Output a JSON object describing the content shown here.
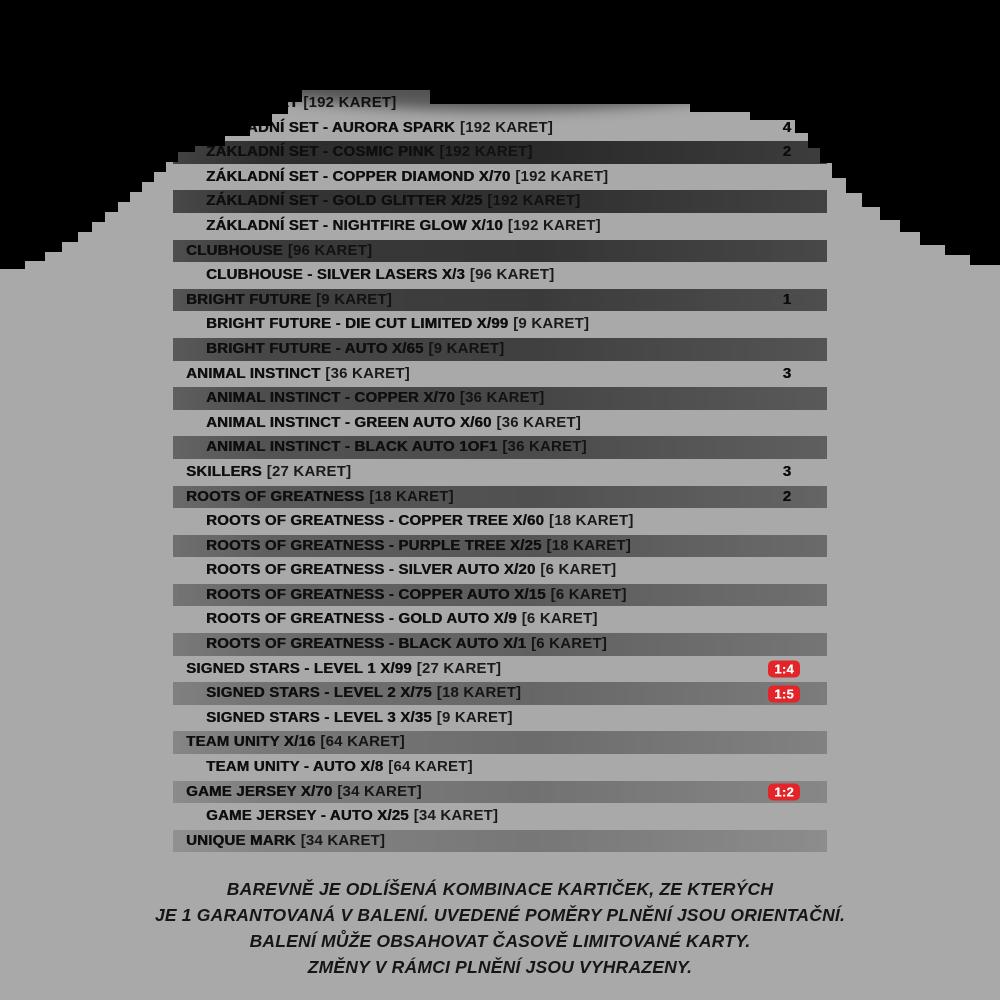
{
  "page": {
    "background_color": "#a9a9a9",
    "dome_color": "#000000",
    "text_color": "#0e0e0e"
  },
  "checklist": {
    "strip_top_color": "#282828",
    "strip_bottom_color": "#848484",
    "badge_color": "#e32428",
    "badge_text_color": "#ffffff",
    "rows": [
      {
        "label": "ZÁKLADNÍ SET",
        "count": "[192 KARET]",
        "indent": 0,
        "striped": false,
        "number": "",
        "badge": ""
      },
      {
        "label": "ZÁKLADNÍ SET - AURORA SPARK",
        "count": "[192 KARET]",
        "indent": 1,
        "striped": false,
        "number": "4",
        "badge": ""
      },
      {
        "label": "ZÁKLADNÍ SET - COSMIC PINK",
        "count": "[192 KARET]",
        "indent": 1,
        "striped": true,
        "number": "2",
        "badge": ""
      },
      {
        "label": "ZÁKLADNÍ SET - COPPER DIAMOND X/70",
        "count": "[192 KARET]",
        "indent": 1,
        "striped": false,
        "number": "",
        "badge": ""
      },
      {
        "label": "ZÁKLADNÍ SET - GOLD GLITTER X/25",
        "count": "[192 KARET]",
        "indent": 1,
        "striped": true,
        "number": "",
        "badge": ""
      },
      {
        "label": "ZÁKLADNÍ SET - NIGHTFIRE GLOW X/10",
        "count": "[192 KARET]",
        "indent": 1,
        "striped": false,
        "number": "",
        "badge": ""
      },
      {
        "label": "CLUBHOUSE",
        "count": "[96 KARET]",
        "indent": 0,
        "striped": true,
        "number": "",
        "badge": ""
      },
      {
        "label": "CLUBHOUSE - SILVER LASERS X/3",
        "count": "[96 KARET]",
        "indent": 1,
        "striped": false,
        "number": "",
        "badge": ""
      },
      {
        "label": "BRIGHT FUTURE",
        "count": "[9 KARET]",
        "indent": 0,
        "striped": true,
        "number": "1",
        "badge": ""
      },
      {
        "label": "BRIGHT FUTURE - DIE CUT LIMITED X/99",
        "count": "[9 KARET]",
        "indent": 1,
        "striped": false,
        "number": "",
        "badge": ""
      },
      {
        "label": "BRIGHT FUTURE - AUTO X/65",
        "count": "[9 KARET]",
        "indent": 1,
        "striped": true,
        "number": "",
        "badge": ""
      },
      {
        "label": "ANIMAL INSTINCT",
        "count": "[36 KARET]",
        "indent": 0,
        "striped": false,
        "number": "3",
        "badge": ""
      },
      {
        "label": "ANIMAL INSTINCT - COPPER X/70",
        "count": "[36 KARET]",
        "indent": 1,
        "striped": true,
        "number": "",
        "badge": ""
      },
      {
        "label": "ANIMAL INSTINCT - GREEN AUTO X/60",
        "count": "[36 KARET]",
        "indent": 1,
        "striped": false,
        "number": "",
        "badge": ""
      },
      {
        "label": "ANIMAL INSTINCT - BLACK AUTO 1OF1",
        "count": "[36 KARET]",
        "indent": 1,
        "striped": true,
        "number": "",
        "badge": ""
      },
      {
        "label": "SKILLERS",
        "count": "[27 KARET]",
        "indent": 0,
        "striped": false,
        "number": "3",
        "badge": ""
      },
      {
        "label": "ROOTS OF GREATNESS",
        "count": "[18 KARET]",
        "indent": 0,
        "striped": true,
        "number": "2",
        "badge": ""
      },
      {
        "label": "ROOTS OF GREATNESS - COPPER TREE X/60",
        "count": "[18 KARET]",
        "indent": 1,
        "striped": false,
        "number": "",
        "badge": ""
      },
      {
        "label": "ROOTS OF GREATNESS - PURPLE TREE X/25",
        "count": "[18 KARET]",
        "indent": 1,
        "striped": true,
        "number": "",
        "badge": ""
      },
      {
        "label": "ROOTS OF GREATNESS - SILVER AUTO X/20",
        "count": "[6 KARET]",
        "indent": 1,
        "striped": false,
        "number": "",
        "badge": ""
      },
      {
        "label": "ROOTS OF GREATNESS - COPPER AUTO X/15",
        "count": "[6 KARET]",
        "indent": 1,
        "striped": true,
        "number": "",
        "badge": ""
      },
      {
        "label": "ROOTS OF GREATNESS - GOLD AUTO X/9",
        "count": "[6 KARET]",
        "indent": 1,
        "striped": false,
        "number": "",
        "badge": ""
      },
      {
        "label": "ROOTS OF GREATNESS - BLACK AUTO X/1",
        "count": "[6 KARET]",
        "indent": 1,
        "striped": true,
        "number": "",
        "badge": ""
      },
      {
        "label": "SIGNED STARS - LEVEL 1 X/99",
        "count": "[27 KARET]",
        "indent": 0,
        "striped": false,
        "number": "",
        "badge": "1:4"
      },
      {
        "label": "SIGNED STARS - LEVEL 2 X/75",
        "count": "[18 KARET]",
        "indent": 1,
        "striped": true,
        "number": "",
        "badge": "1:5"
      },
      {
        "label": "SIGNED STARS - LEVEL 3 X/35",
        "count": "[9 KARET]",
        "indent": 1,
        "striped": false,
        "number": "",
        "badge": ""
      },
      {
        "label": "TEAM UNITY X/16",
        "count": "[64 KARET]",
        "indent": 0,
        "striped": true,
        "number": "",
        "badge": ""
      },
      {
        "label": "TEAM UNITY - AUTO X/8",
        "count": "[64 KARET]",
        "indent": 1,
        "striped": false,
        "number": "",
        "badge": ""
      },
      {
        "label": "GAME JERSEY X/70",
        "count": "[34 KARET]",
        "indent": 0,
        "striped": true,
        "number": "",
        "badge": "1:2"
      },
      {
        "label": "GAME JERSEY - AUTO X/25",
        "count": "[34 KARET]",
        "indent": 1,
        "striped": false,
        "number": "",
        "badge": ""
      },
      {
        "label": "UNIQUE MARK",
        "count": "[34 KARET]",
        "indent": 0,
        "striped": true,
        "number": "",
        "badge": ""
      }
    ]
  },
  "footer": {
    "line1": "BAREVNĚ JE ODLÍŠENÁ KOMBINACE KARTIČEK, ZE KTERÝCH",
    "line2": "JE 1 GARANTOVANÁ V BALENÍ. UVEDENÉ POMĚRY PLNĚNÍ JSOU ORIENTAČNÍ.",
    "line3": "BALENÍ MŮŽE OBSAHOVAT ČASOVĚ LIMITOVANÉ KARTY.",
    "line4": "ZMĚNY V RÁMCI PLNĚNÍ JSOU VYHRAZENY."
  }
}
